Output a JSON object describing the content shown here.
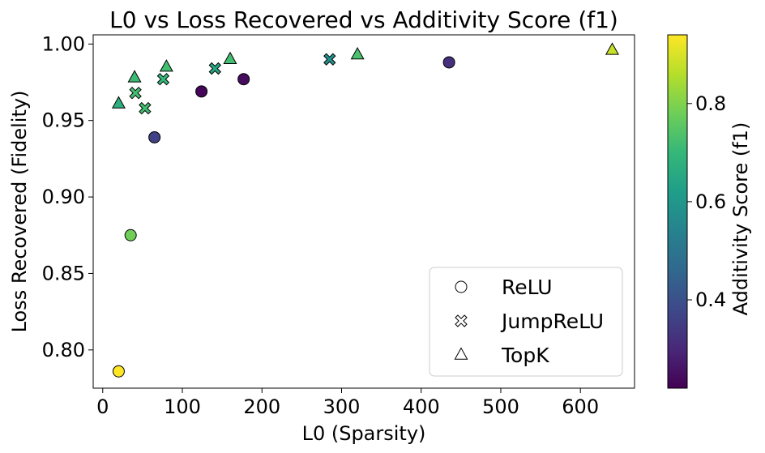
{
  "chart_data": {
    "type": "scatter",
    "title": "L0 vs Loss Recovered vs Additivity Score (f1)",
    "xlabel": "L0 (Sparsity)",
    "ylabel": "Loss Recovered (Fidelity)",
    "xlim": [
      -12,
      668
    ],
    "ylim": [
      0.775,
      1.006
    ],
    "xticks": [
      0,
      100,
      200,
      300,
      400,
      500,
      600
    ],
    "xtick_labels": [
      "0",
      "100",
      "200",
      "300",
      "400",
      "500",
      "600"
    ],
    "yticks": [
      0.8,
      0.85,
      0.9,
      0.95,
      1.0
    ],
    "ytick_labels": [
      "0.80",
      "0.85",
      "0.90",
      "0.95",
      "1.00"
    ],
    "grid": false,
    "colorbar": {
      "label": "Additivity Score (f1)",
      "range": [
        0.22,
        0.94
      ],
      "ticks": [
        0.4,
        0.6,
        0.8
      ],
      "tick_labels": [
        "0.4",
        "0.6",
        "0.8"
      ],
      "colormap": "viridis",
      "colormap_stops": [
        "#440154",
        "#482878",
        "#3e4989",
        "#31688e",
        "#26828e",
        "#1f9e89",
        "#35b779",
        "#6ece58",
        "#b5de2b",
        "#fde725"
      ]
    },
    "legend": {
      "position": "lower-right",
      "entries": [
        {
          "label": "ReLU",
          "marker": "circle"
        },
        {
          "label": "JumpReLU",
          "marker": "cross"
        },
        {
          "label": "TopK",
          "marker": "triangle"
        }
      ]
    },
    "series": [
      {
        "name": "ReLU",
        "marker": "circle",
        "points": [
          {
            "x": 20,
            "y": 0.786,
            "f1": 0.94
          },
          {
            "x": 35,
            "y": 0.875,
            "f1": 0.78
          },
          {
            "x": 65,
            "y": 0.939,
            "f1": 0.36
          },
          {
            "x": 124,
            "y": 0.969,
            "f1": 0.23
          },
          {
            "x": 177,
            "y": 0.977,
            "f1": 0.24
          },
          {
            "x": 435,
            "y": 0.988,
            "f1": 0.32
          }
        ]
      },
      {
        "name": "JumpReLU",
        "marker": "cross",
        "points": [
          {
            "x": 41,
            "y": 0.968,
            "f1": 0.72
          },
          {
            "x": 53,
            "y": 0.958,
            "f1": 0.72
          },
          {
            "x": 76,
            "y": 0.977,
            "f1": 0.7
          },
          {
            "x": 141,
            "y": 0.984,
            "f1": 0.65
          },
          {
            "x": 285,
            "y": 0.99,
            "f1": 0.58
          }
        ]
      },
      {
        "name": "TopK",
        "marker": "triangle",
        "points": [
          {
            "x": 20,
            "y": 0.961,
            "f1": 0.67
          },
          {
            "x": 40,
            "y": 0.978,
            "f1": 0.71
          },
          {
            "x": 80,
            "y": 0.985,
            "f1": 0.72
          },
          {
            "x": 160,
            "y": 0.99,
            "f1": 0.72
          },
          {
            "x": 320,
            "y": 0.993,
            "f1": 0.73
          },
          {
            "x": 640,
            "y": 0.996,
            "f1": 0.88
          }
        ]
      }
    ]
  }
}
